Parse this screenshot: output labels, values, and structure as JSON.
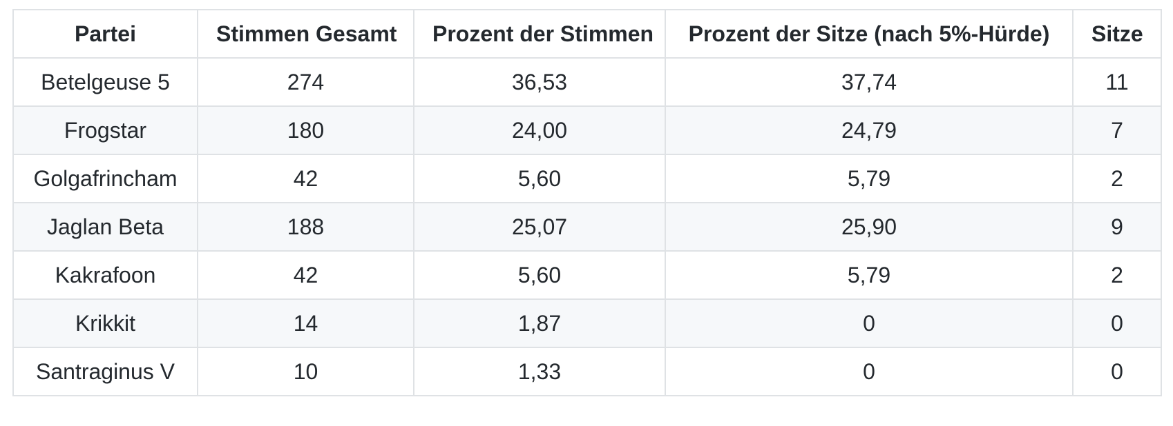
{
  "table": {
    "headers": [
      "Partei",
      "Stimmen Gesamt",
      "Prozent der Stimmen",
      "Prozent der Sitze (nach 5%-Hürde)",
      "Sitze"
    ],
    "rows": [
      [
        "Betelgeuse 5",
        "274",
        "36,53",
        "37,74",
        "11"
      ],
      [
        "Frogstar",
        "180",
        "24,00",
        "24,79",
        "7"
      ],
      [
        "Golgafrincham",
        "42",
        "5,60",
        "5,79",
        "2"
      ],
      [
        "Jaglan Beta",
        "188",
        "25,07",
        "25,90",
        "9"
      ],
      [
        "Kakrafoon",
        "42",
        "5,60",
        "5,79",
        "2"
      ],
      [
        "Krikkit",
        "14",
        "1,87",
        "0",
        "0"
      ],
      [
        "Santraginus V",
        "10",
        "1,33",
        "0",
        "0"
      ]
    ]
  },
  "colors": {
    "border": "#dfe2e5",
    "row_stripe": "#f6f8fa",
    "text": "#24292e",
    "background": "#ffffff"
  }
}
